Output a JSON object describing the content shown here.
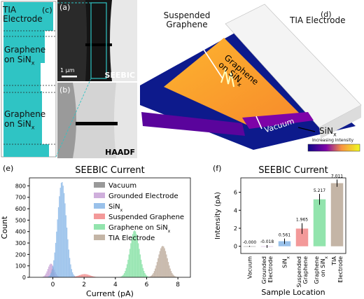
{
  "panel_c": {
    "letter": "(c)",
    "labels": [
      "TIA Electrode",
      "Graphene on SiN",
      "Graphene on SiN"
    ],
    "sub": "x",
    "colors": {
      "cyan": "#2fc4c4"
    }
  },
  "panel_a": {
    "letter": "(a)",
    "scalebar": "1 μm",
    "caption": "SEEBIC"
  },
  "panel_b": {
    "letter": "(b)",
    "caption": "HAADF"
  },
  "panel_d": {
    "letter": "(d)",
    "suspended": "Suspended Graphene",
    "tia": "TIA Electrode",
    "graphene": "Graphene on SiN",
    "graphene_sub": "x",
    "vacuum": "Vacuum",
    "grounded": "Grounded Electrode",
    "sinx": "SiN",
    "sinx_sub": "x",
    "colorbar": "Increasing Intensity"
  },
  "chart_data": [
    {
      "type": "histogram",
      "panel": "(e)",
      "title": "SEEBIC Current",
      "xlabel": "Current (pA)",
      "ylabel": "Count",
      "xlim": [
        -1.5,
        8.8
      ],
      "ylim": [
        0,
        870
      ],
      "xticks": [
        0,
        2,
        4,
        6,
        8
      ],
      "yticks": [
        0,
        100,
        200,
        300,
        400,
        500,
        600,
        700,
        800
      ],
      "legend_position": "top-right",
      "series": [
        {
          "name": "Vacuum",
          "center": -0.05,
          "sigma": 0.08,
          "peak": 75,
          "color": "#7f7f7f"
        },
        {
          "name": "Grounded Electrode",
          "center": -0.15,
          "sigma": 0.2,
          "peak": 120,
          "color": "#c39bd3"
        },
        {
          "name": "SiN",
          "name_sub": "x",
          "center": 0.55,
          "sigma": 0.28,
          "peak": 835,
          "color": "#7fb2e5"
        },
        {
          "name": "Suspended Graphene",
          "center": 2.0,
          "sigma": 0.35,
          "peak": 28,
          "color": "#f08080"
        },
        {
          "name": "Graphene on SiN",
          "name_sub": "x",
          "center": 5.2,
          "sigma": 0.3,
          "peak": 410,
          "color": "#77dd99"
        },
        {
          "name": "TIA Electrode",
          "center": 7.0,
          "sigma": 0.3,
          "peak": 275,
          "color": "#b5a290"
        }
      ]
    },
    {
      "type": "bar",
      "panel": "(f)",
      "title": "SEEBIC Current",
      "xlabel": "Sample Location",
      "ylabel": "Intensity (pA)",
      "ylim": [
        -0.8,
        7.6
      ],
      "yticks": [
        0,
        2,
        4,
        6
      ],
      "categories": [
        "Vacuum",
        "Grounded Electrode",
        "SiN",
        "Suspended Graphene",
        "Graphene on SiN",
        "TIA Electrode"
      ],
      "category_lines": [
        [
          "Vacuum"
        ],
        [
          "Grounded",
          "Electrode"
        ],
        [
          "SiN"
        ],
        [
          "Suspended",
          "Graphene"
        ],
        [
          "Graphene",
          "on SiN"
        ],
        [
          "TIA",
          "Electrode"
        ]
      ],
      "category_subs": [
        false,
        false,
        true,
        false,
        true,
        false
      ],
      "values": [
        -0.0,
        -0.018,
        0.561,
        1.965,
        5.217,
        7.011
      ],
      "value_labels": [
        "-0.000",
        "-0.018",
        "0.561",
        "1.965",
        "5.217",
        "7.011"
      ],
      "errors": [
        0.05,
        0.15,
        0.3,
        0.6,
        0.6,
        0.4
      ],
      "colors": [
        "#7f7f7f",
        "#c39bd3",
        "#7fb2e5",
        "#f08080",
        "#77dd99",
        "#b5a290"
      ]
    }
  ]
}
